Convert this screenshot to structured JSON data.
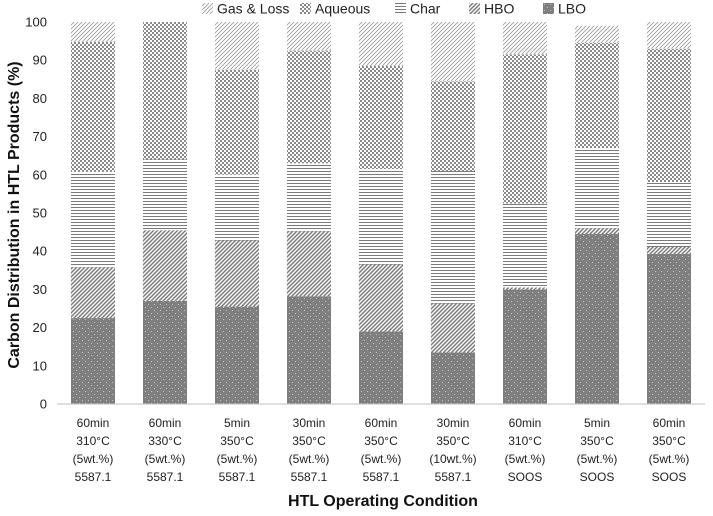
{
  "chart_data": {
    "type": "bar",
    "stacked": true,
    "xlabel": "HTL Operating Condition",
    "ylabel": "Carbon Distribution in HTL Products (%)",
    "ylim": [
      0,
      100
    ],
    "yticks": [
      0,
      10,
      20,
      30,
      40,
      50,
      60,
      70,
      80,
      90,
      100
    ],
    "grid": false,
    "legend_position": "top",
    "legend_order": [
      "Gas & Loss",
      "Aqueous",
      "Char",
      "HBO",
      "LBO"
    ],
    "categories": [
      [
        "60min",
        "310°C",
        "(5wt.%)",
        "5587.1"
      ],
      [
        "60min",
        "330°C",
        "(5wt.%)",
        "5587.1"
      ],
      [
        "5min",
        "350°C",
        "(5wt.%)",
        "5587.1"
      ],
      [
        "30min",
        "350°C",
        "(5wt.%)",
        "5587.1"
      ],
      [
        "60min",
        "350°C",
        "(5wt.%)",
        "5587.1"
      ],
      [
        "30min",
        "350°C",
        "(10wt.%)",
        "5587.1"
      ],
      [
        "60min",
        "310°C",
        "(5wt.%)",
        "SOOS"
      ],
      [
        "5min",
        "350°C",
        "(5wt.%)",
        "SOOS"
      ],
      [
        "60min",
        "350°C",
        "(5wt.%)",
        "SOOS"
      ]
    ],
    "series": [
      {
        "name": "LBO",
        "color": "#808080",
        "pattern": "dots",
        "values": [
          22.5,
          27,
          25.5,
          28.2,
          19,
          13.5,
          30,
          44.5,
          39.3
        ]
      },
      {
        "name": "HBO",
        "color": "#808080",
        "pattern": "diagonal",
        "values": [
          13.3,
          18.5,
          17.3,
          17,
          17.5,
          12.8,
          0.5,
          1.5,
          1.8
        ]
      },
      {
        "name": "Char",
        "color": "#808080",
        "pattern": "horizontal",
        "values": [
          25,
          18.5,
          17.2,
          17.8,
          25,
          34.7,
          22,
          21,
          17
        ]
      },
      {
        "name": "Aqueous",
        "color": "#808080",
        "pattern": "checker",
        "values": [
          34,
          36,
          27.5,
          29.5,
          27,
          23.5,
          39,
          27.5,
          34.9
        ]
      },
      {
        "name": "Gas & Loss",
        "color": "#808080",
        "pattern": "fine-diagonal",
        "values": [
          5.2,
          0,
          12.5,
          7.5,
          11.5,
          15.5,
          8.5,
          4.5,
          7
        ]
      }
    ]
  }
}
